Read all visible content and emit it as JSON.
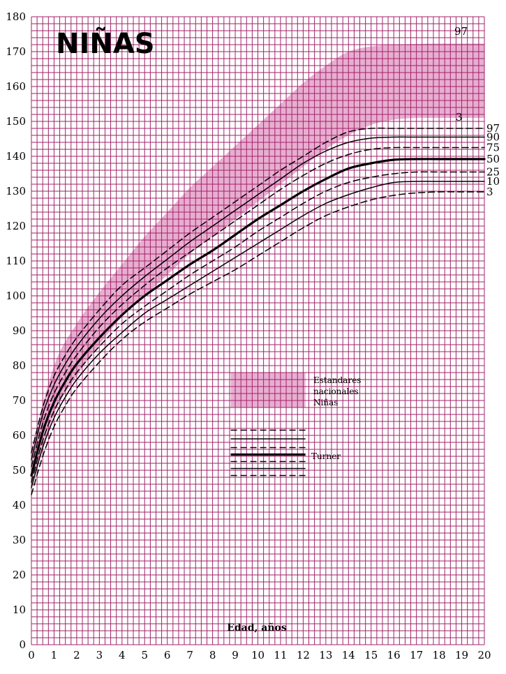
{
  "title": "NIÑAS",
  "colors": {
    "grid": "#a0226a",
    "band": "#e8aed0",
    "background": "#ffffff",
    "curves": "#000000"
  },
  "chart_data": {
    "type": "line",
    "title": "NIÑAS",
    "xlabel": "Edad, años",
    "ylabel": "",
    "xlim": [
      0,
      20
    ],
    "ylim": [
      0,
      180
    ],
    "x_ticks": [
      "0",
      "1",
      "2",
      "3",
      "4",
      "5",
      "6",
      "7",
      "8",
      "9",
      "10",
      "11",
      "12",
      "13",
      "14",
      "15",
      "16",
      "17",
      "18",
      "19",
      "20"
    ],
    "y_ticks": [
      "0",
      "10",
      "20",
      "30",
      "40",
      "50",
      "60",
      "70",
      "80",
      "90",
      "100",
      "110",
      "120",
      "130",
      "140",
      "150",
      "160",
      "170",
      "180"
    ],
    "grid": true,
    "band": {
      "name": "Estandares nacionales Niñas",
      "upper_label": "97",
      "lower_label": "3",
      "x": [
        0,
        1,
        2,
        3,
        4,
        5,
        6,
        7,
        8,
        9,
        10,
        11,
        12,
        13,
        14,
        15,
        16,
        17,
        18,
        19,
        20
      ],
      "upper": [
        56,
        80,
        92,
        101,
        109,
        117,
        124,
        131,
        137,
        143,
        149,
        155,
        161,
        166,
        170,
        171.5,
        172,
        172.2,
        172.3,
        172.3,
        172.3
      ],
      "lower": [
        45,
        66,
        77,
        86,
        94,
        100,
        106,
        112,
        117,
        122,
        127,
        132,
        137,
        142,
        146,
        149,
        150.5,
        151,
        151,
        151,
        151
      ]
    },
    "x": [
      0,
      0.5,
      1,
      1.5,
      2,
      3,
      4,
      5,
      6,
      7,
      8,
      9,
      10,
      11,
      12,
      13,
      14,
      15,
      16,
      17,
      18,
      19,
      20
    ],
    "series": [
      {
        "name": "97",
        "style": "dashed",
        "values": [
          55,
          68,
          77,
          83,
          88,
          96,
          103,
          108,
          113,
          118,
          122.5,
          127,
          131.5,
          136,
          140,
          144,
          147,
          148,
          148,
          148,
          148,
          148,
          148
        ]
      },
      {
        "name": "90",
        "style": "solid",
        "values": [
          53,
          66,
          74.5,
          80.5,
          85.5,
          93.5,
          100,
          105.5,
          110.5,
          115.5,
          120,
          124.5,
          129,
          133.5,
          138,
          141.5,
          144,
          145.2,
          145.5,
          145.5,
          145.5,
          145.5,
          145.5
        ]
      },
      {
        "name": "75",
        "style": "dashed",
        "values": [
          51,
          63.5,
          72,
          78,
          83,
          91,
          97.5,
          103,
          108,
          112.5,
          117,
          121.5,
          126,
          130.5,
          134.5,
          138,
          140.5,
          142,
          142.5,
          142.5,
          142.5,
          142.5,
          142.5
        ]
      },
      {
        "name": "50",
        "style": "bold",
        "values": [
          48.5,
          61,
          69.5,
          75.5,
          80.5,
          88,
          94.5,
          100,
          104.5,
          109,
          113,
          117.5,
          122,
          126,
          130,
          133.5,
          136.5,
          138,
          139,
          139.2,
          139.2,
          139.2,
          139.2
        ]
      },
      {
        "name": "25",
        "style": "dashed",
        "values": [
          46.5,
          58.5,
          67,
          73,
          78,
          85.5,
          92,
          97,
          101.5,
          106,
          110,
          114,
          118.5,
          122.5,
          126.5,
          130,
          132.5,
          134,
          135,
          135.5,
          135.5,
          135.5,
          135.5
        ]
      },
      {
        "name": "10",
        "style": "solid",
        "values": [
          45,
          56.5,
          65,
          71,
          76,
          83.5,
          89.5,
          95,
          99,
          103,
          107,
          111,
          115,
          119,
          123,
          126.5,
          129,
          131,
          132.5,
          132.8,
          132.8,
          132.8,
          132.8
        ]
      },
      {
        "name": "3",
        "style": "dashed",
        "values": [
          43,
          54,
          62.5,
          68.5,
          73.5,
          81,
          87.5,
          92.5,
          96.5,
          100.5,
          104,
          107.5,
          111.5,
          115.5,
          119.5,
          123,
          125.5,
          127.5,
          128.8,
          129.5,
          129.8,
          129.8,
          129.8
        ]
      }
    ],
    "legend": {
      "band_label_lines": [
        "Estandares",
        "nacionales",
        "Niñas"
      ],
      "lines_label": "Turner",
      "placement": "center"
    }
  }
}
